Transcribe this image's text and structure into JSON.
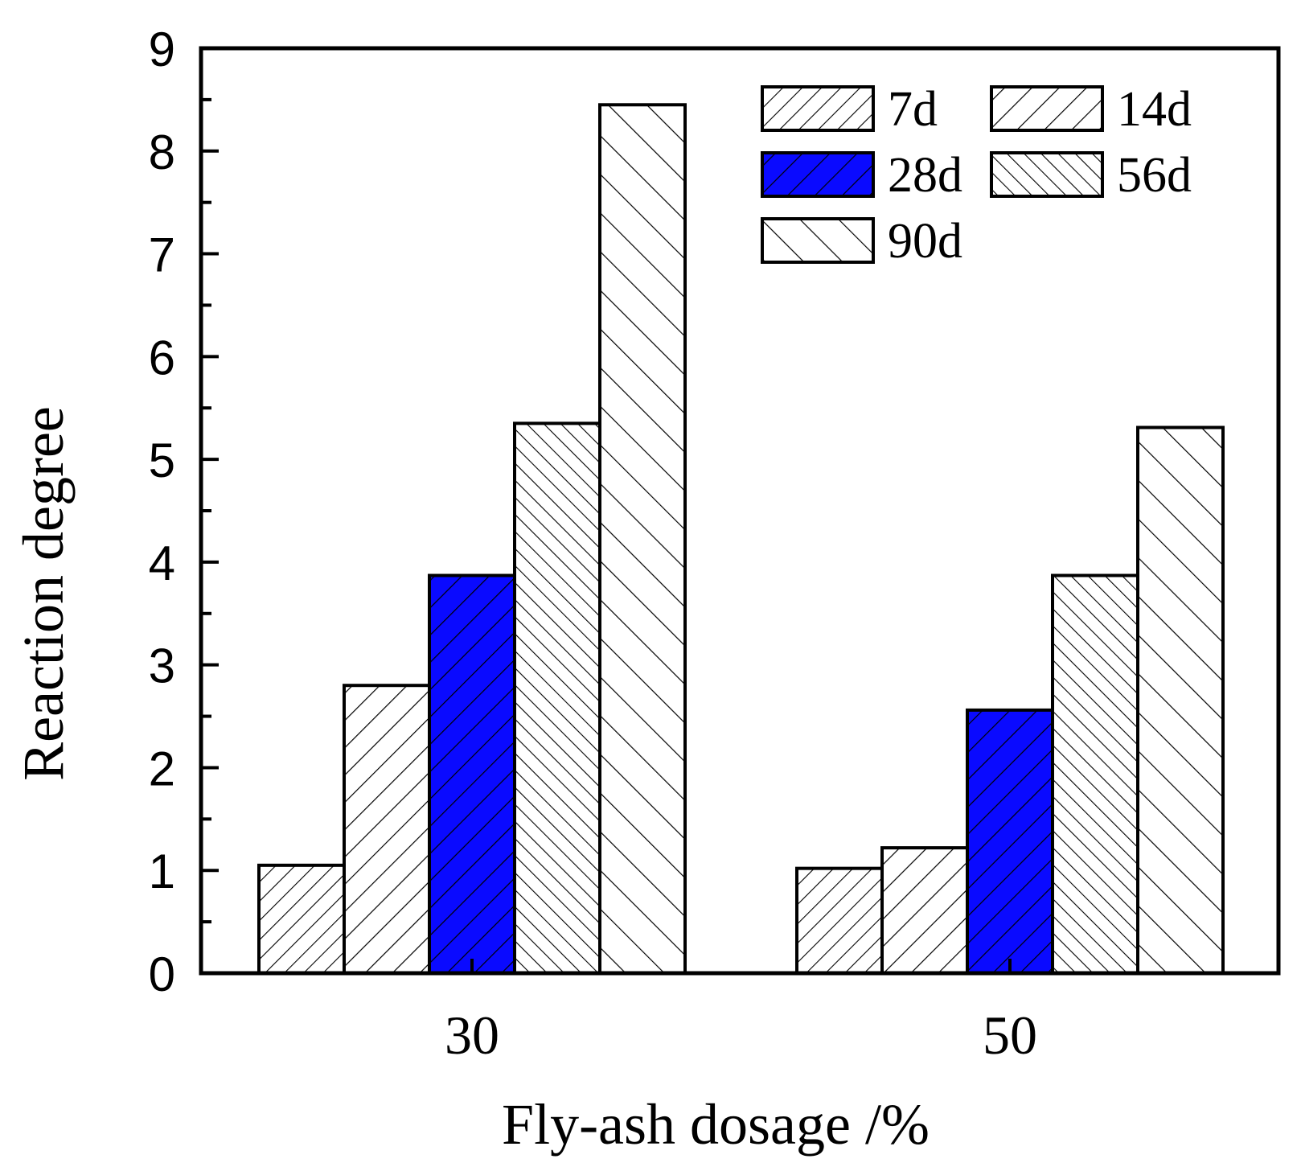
{
  "chart_data": {
    "type": "bar",
    "title": "",
    "xlabel": "Fly-ash dosage /%",
    "ylabel": "Reaction degree",
    "categories": [
      "30",
      "50"
    ],
    "ylim": [
      0,
      9
    ],
    "yticks": [
      "0",
      "1",
      "2",
      "3",
      "4",
      "5",
      "6",
      "7",
      "8",
      "9"
    ],
    "grid": false,
    "legend_position": "top-right",
    "series": [
      {
        "name": "7d",
        "values": [
          1.05,
          1.02
        ],
        "fill": "#ffffff",
        "hatch": "dense-forward"
      },
      {
        "name": "14d",
        "values": [
          2.8,
          1.22
        ],
        "fill": "#ffffff",
        "hatch": "forward"
      },
      {
        "name": "28d",
        "values": [
          3.87,
          2.56
        ],
        "fill": "#0a0aff",
        "hatch": "forward"
      },
      {
        "name": "56d",
        "values": [
          5.35,
          3.87
        ],
        "fill": "#ffffff",
        "hatch": "dense-back"
      },
      {
        "name": "90d",
        "values": [
          8.45,
          5.31
        ],
        "fill": "#ffffff",
        "hatch": "back"
      }
    ]
  }
}
